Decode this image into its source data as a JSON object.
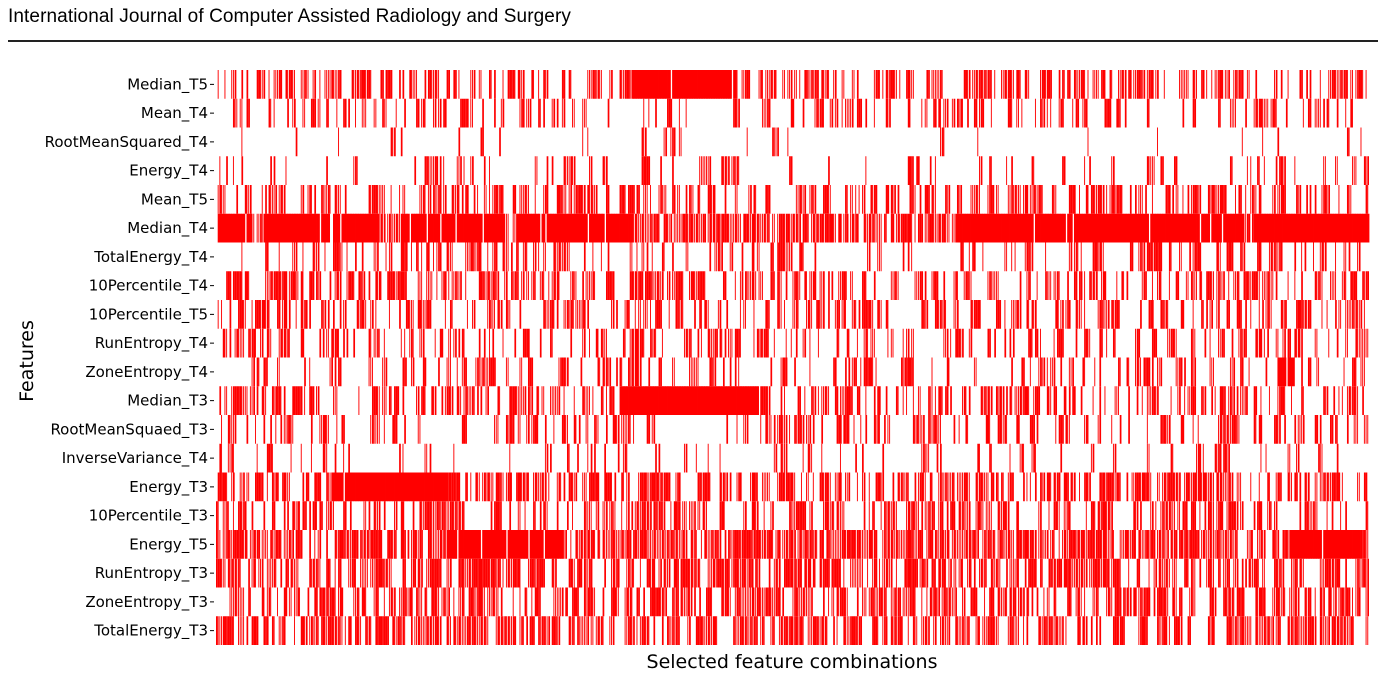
{
  "header": {
    "journal_title": "International Journal of Computer Assisted Radiology and Surgery"
  },
  "chart_data": {
    "type": "heatmap",
    "title": "",
    "xlabel": "Selected feature combinations",
    "ylabel": "Features",
    "mark_color": "#ff0000",
    "background_color": "#ffffff",
    "grid": false,
    "legend": "none",
    "num_columns": 680,
    "rows": [
      {
        "name": "Median_T5",
        "density": 0.45,
        "solid_ranges": [
          [
            0.36,
            0.45
          ]
        ]
      },
      {
        "name": "Mean_T4",
        "density": 0.3,
        "solid_ranges": []
      },
      {
        "name": "RootMeanSquared_T4",
        "density": 0.12,
        "solid_ranges": []
      },
      {
        "name": "Energy_T4",
        "density": 0.22,
        "solid_ranges": []
      },
      {
        "name": "Mean_T5",
        "density": 0.4,
        "solid_ranges": []
      },
      {
        "name": "Median_T4",
        "density": 0.92,
        "solid_ranges": [
          [
            0.0,
            0.03
          ],
          [
            0.04,
            0.14
          ],
          [
            0.16,
            0.25
          ],
          [
            0.26,
            0.36
          ],
          [
            0.64,
            0.89
          ],
          [
            0.9,
            1.0
          ]
        ]
      },
      {
        "name": "TotalEnergy_T4",
        "density": 0.28,
        "solid_ranges": []
      },
      {
        "name": "10Percentile_T4",
        "density": 0.45,
        "solid_ranges": []
      },
      {
        "name": "10Percentile_T5",
        "density": 0.38,
        "solid_ranges": []
      },
      {
        "name": "RunEntropy_T4",
        "density": 0.35,
        "solid_ranges": []
      },
      {
        "name": "ZoneEntropy_T4",
        "density": 0.3,
        "solid_ranges": [
          [
            0.92,
            0.935
          ]
        ]
      },
      {
        "name": "Median_T3",
        "density": 0.38,
        "solid_ranges": [
          [
            0.35,
            0.47
          ]
        ]
      },
      {
        "name": "RootMeanSquaed_T3",
        "density": 0.33,
        "solid_ranges": []
      },
      {
        "name": "InverseVariance_T4",
        "density": 0.2,
        "solid_ranges": []
      },
      {
        "name": "Energy_T3",
        "density": 0.5,
        "solid_ranges": [
          [
            0.1,
            0.2
          ]
        ]
      },
      {
        "name": "10Percentile_T3",
        "density": 0.42,
        "solid_ranges": []
      },
      {
        "name": "Energy_T5",
        "density": 0.68,
        "solid_ranges": [
          [
            0.2,
            0.3
          ],
          [
            0.93,
            0.99
          ]
        ]
      },
      {
        "name": "RunEntropy_T3",
        "density": 0.52,
        "solid_ranges": []
      },
      {
        "name": "ZoneEntropy_T3",
        "density": 0.52,
        "solid_ranges": []
      },
      {
        "name": "TotalEnergy_T3",
        "density": 0.55,
        "solid_ranges": []
      }
    ]
  }
}
